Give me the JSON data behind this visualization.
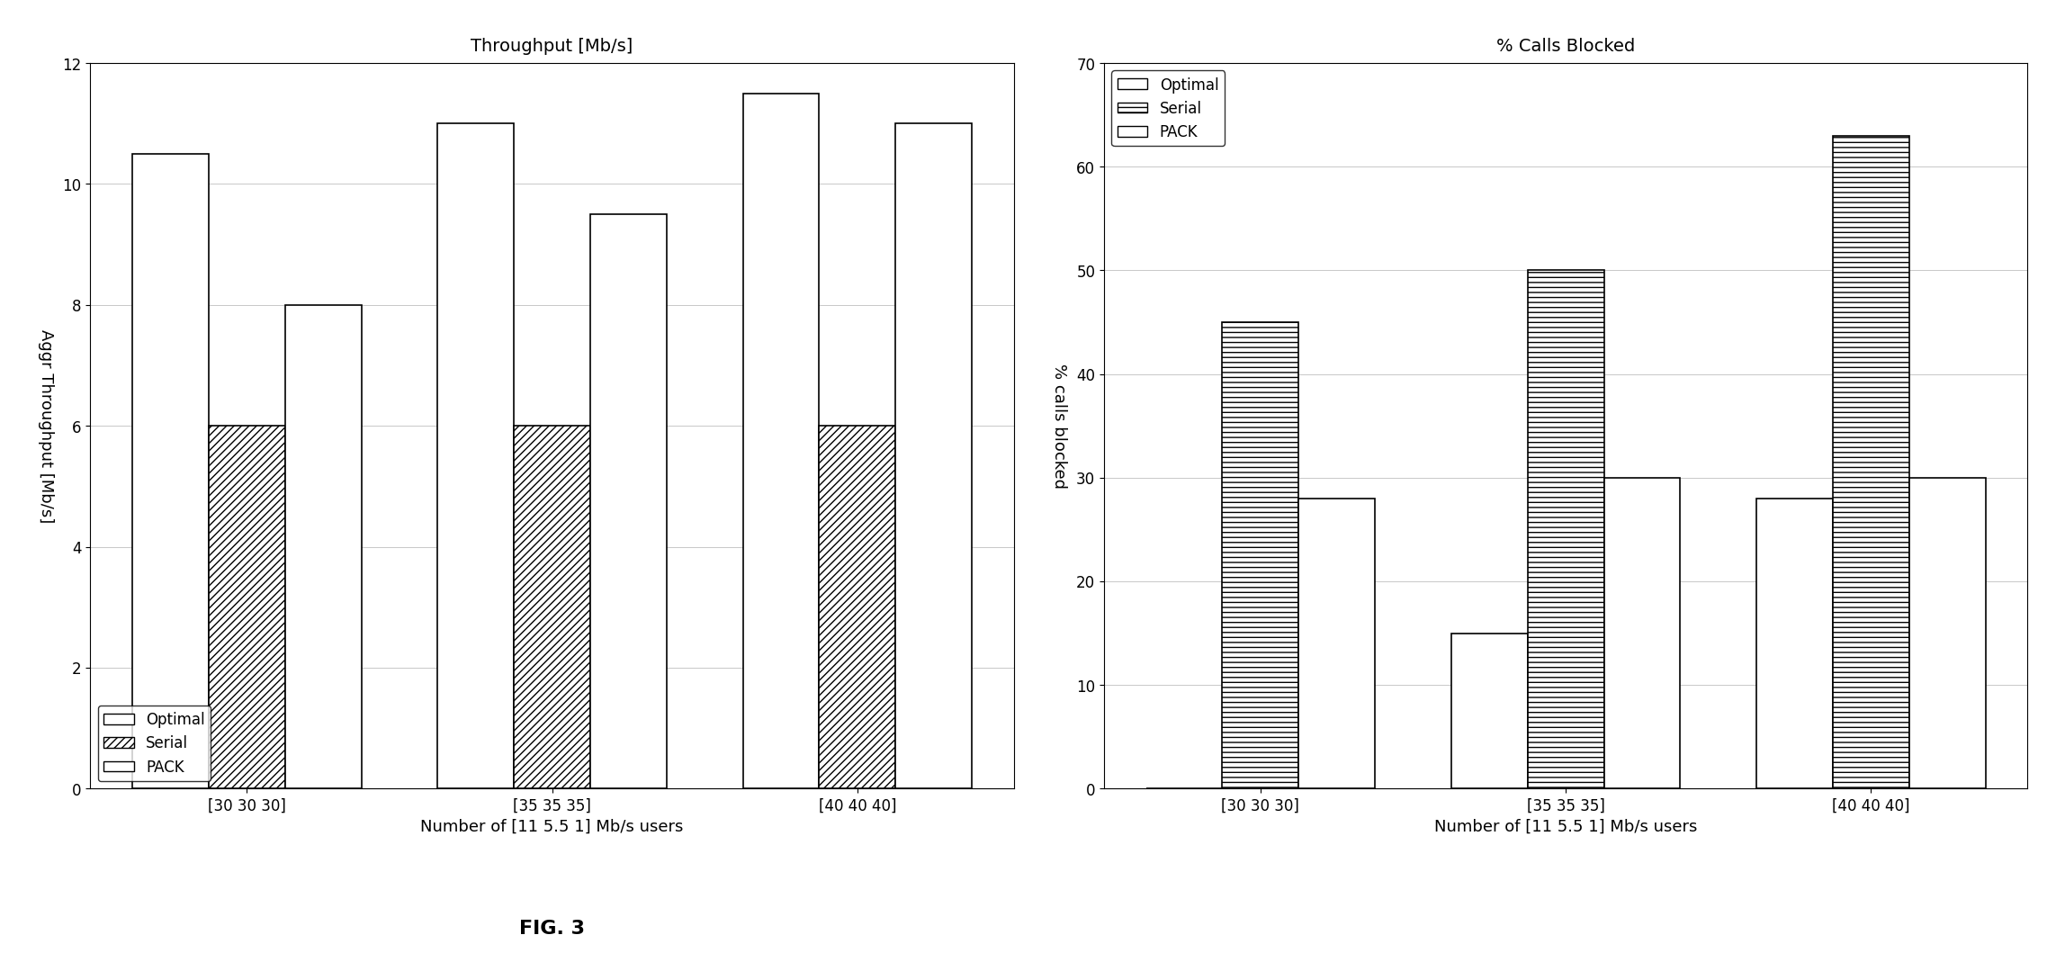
{
  "fig3": {
    "title": "Throughput [Mb/s]",
    "ylabel": "Aggr Throughput [Mb/s]",
    "xlabel": "Number of [11 5.5 1] Mb/s users",
    "ylim": [
      0,
      12
    ],
    "yticks": [
      0,
      2,
      4,
      6,
      8,
      10,
      12
    ],
    "groups": [
      "[30 30 30]",
      "[35 35 35]",
      "[40 40 40]"
    ],
    "series": {
      "Optimal": [
        10.5,
        11.0,
        11.5
      ],
      "Serial": [
        6.0,
        6.0,
        6.0
      ],
      "PACK": [
        8.0,
        9.5,
        11.0
      ]
    },
    "legend_labels": [
      "Optimal",
      "Serial",
      "PACK"
    ],
    "legend_loc": "lower left"
  },
  "fig4": {
    "title": "% Calls Blocked",
    "ylabel": "% calls blocked",
    "xlabel": "Number of [11 5.5 1] Mb/s users",
    "ylim": [
      0,
      70
    ],
    "yticks": [
      0,
      10,
      20,
      30,
      40,
      50,
      60,
      70
    ],
    "groups": [
      "[30 30 30]",
      "[35 35 35]",
      "[40 40 40]"
    ],
    "series": {
      "Optimal": [
        0.0,
        15.0,
        28.0
      ],
      "Serial": [
        45.0,
        50.0,
        63.0
      ],
      "PACK": [
        28.0,
        30.0,
        30.0
      ]
    },
    "legend_labels": [
      "Optimal",
      "Serial",
      "PACK"
    ],
    "legend_loc": "upper left"
  }
}
